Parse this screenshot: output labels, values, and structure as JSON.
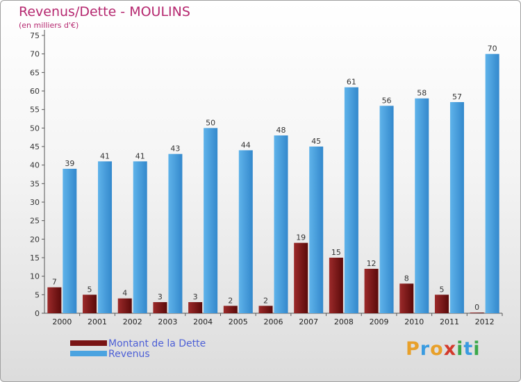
{
  "chart_data": {
    "type": "bar",
    "title": "Revenus/Dette - MOULINS",
    "subtitle": "(en milliers d'€)",
    "categories": [
      "2000",
      "2001",
      "2002",
      "2003",
      "2004",
      "2005",
      "2006",
      "2007",
      "2008",
      "2009",
      "2010",
      "2011",
      "2012"
    ],
    "series": [
      {
        "name": "Montant de la Dette",
        "color": "#7a1414",
        "values": [
          7,
          5,
          4,
          3,
          3,
          2,
          2,
          19,
          15,
          12,
          8,
          5,
          0
        ]
      },
      {
        "name": "Revenus",
        "color": "#4aa3e0",
        "values": [
          39,
          41,
          41,
          43,
          50,
          44,
          48,
          45,
          61,
          56,
          58,
          57,
          70
        ]
      }
    ],
    "yticks": [
      0,
      5,
      10,
      15,
      20,
      25,
      30,
      35,
      40,
      45,
      50,
      55,
      60,
      65,
      70,
      75
    ],
    "ylim": [
      0,
      75
    ],
    "grid": false,
    "legend_position": "bottom-left"
  },
  "brand": {
    "letters": [
      "P",
      "r",
      "o",
      "x",
      "i",
      "t",
      "i"
    ],
    "colors": [
      "#e8a02a",
      "#3a9be0",
      "#e8a02a",
      "#d33a2c",
      "#3aa84a",
      "#3a9be0",
      "#3aa84a"
    ]
  }
}
